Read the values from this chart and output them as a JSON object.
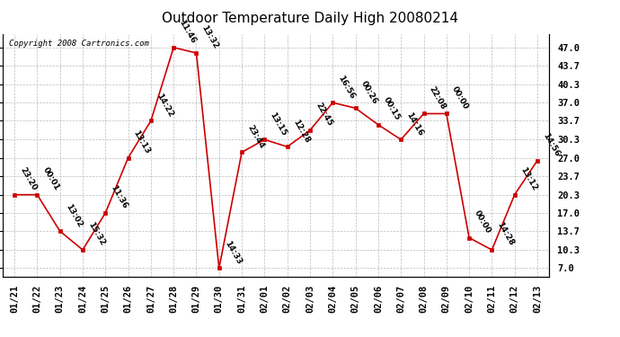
{
  "title": "Outdoor Temperature Daily High 20080214",
  "copyright": "Copyright 2008 Cartronics.com",
  "x_labels": [
    "01/21",
    "01/22",
    "01/23",
    "01/24",
    "01/25",
    "01/26",
    "01/27",
    "01/28",
    "01/29",
    "01/30",
    "01/31",
    "02/01",
    "02/02",
    "02/03",
    "02/04",
    "02/05",
    "02/06",
    "02/07",
    "02/08",
    "02/09",
    "02/10",
    "02/11",
    "02/12",
    "02/13"
  ],
  "y_values": [
    20.3,
    20.3,
    13.7,
    10.3,
    17.0,
    27.0,
    33.7,
    47.0,
    46.0,
    7.0,
    28.0,
    30.3,
    29.0,
    32.0,
    37.0,
    36.0,
    33.0,
    30.3,
    35.0,
    35.0,
    12.5,
    10.3,
    20.3,
    26.5
  ],
  "point_labels": [
    "23:20",
    "00:01",
    "13:02",
    "15:32",
    "11:36",
    "13:13",
    "14:22",
    "11:46",
    "13:32",
    "14:33",
    "23:44",
    "13:15",
    "12:28",
    "22:45",
    "16:56",
    "00:26",
    "00:15",
    "14:16",
    "22:08",
    "00:00",
    "00:00",
    "14:28",
    "13:12",
    "14:56"
  ],
  "y_ticks": [
    7.0,
    10.3,
    13.7,
    17.0,
    20.3,
    23.7,
    27.0,
    30.3,
    33.7,
    37.0,
    40.3,
    43.7,
    47.0
  ],
  "ylim": [
    5.5,
    49.5
  ],
  "line_color": "#cc0000",
  "marker_color": "#cc0000",
  "bg_color": "#ffffff",
  "grid_color": "#bbbbbb",
  "title_fontsize": 11,
  "label_fontsize": 6.5,
  "tick_fontsize": 7.5,
  "copyright_fontsize": 6.5
}
